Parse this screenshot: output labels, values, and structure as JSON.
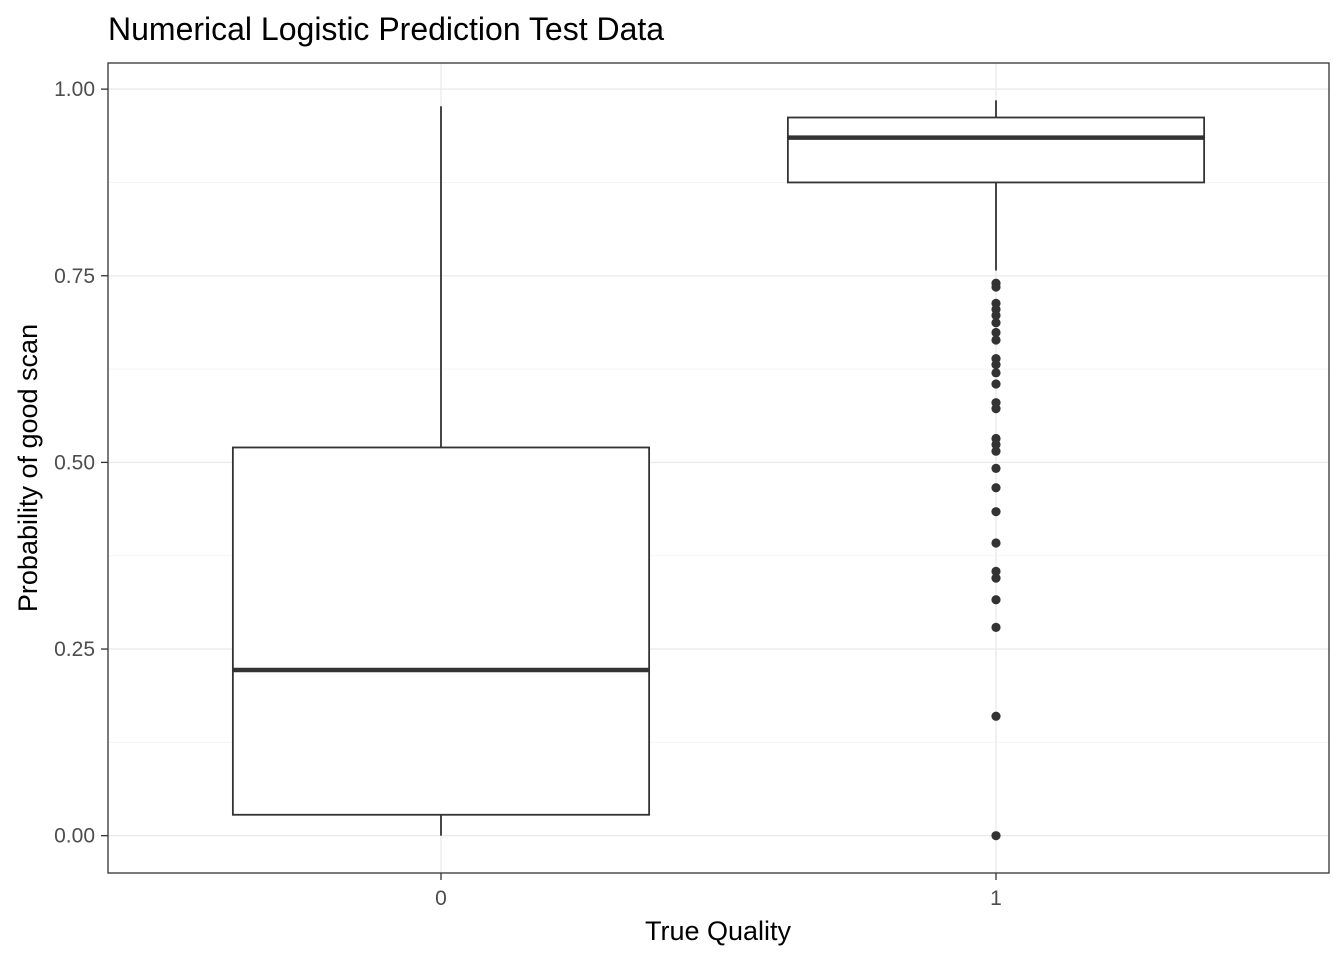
{
  "chart_data": {
    "type": "boxplot",
    "title": "Numerical Logistic Prediction Test Data",
    "xlabel": "True Quality",
    "ylabel": "Probability of good scan",
    "categories": [
      "0",
      "1"
    ],
    "ylim": [
      -0.05,
      1.035
    ],
    "y_ticks": [
      0.0,
      0.25,
      0.5,
      0.75,
      1.0
    ],
    "y_tick_labels": [
      "0.00",
      "0.25",
      "0.50",
      "0.75",
      "1.00"
    ],
    "grid": true,
    "legend": "none",
    "boxes": [
      {
        "category": "0",
        "min": 0.0,
        "q1": 0.028,
        "median": 0.222,
        "q3": 0.52,
        "max": 0.977,
        "outliers": []
      },
      {
        "category": "1",
        "min": 0.757,
        "q1": 0.875,
        "median": 0.935,
        "q3": 0.962,
        "max": 0.985,
        "outliers": [
          0.74,
          0.735,
          0.713,
          0.705,
          0.697,
          0.687,
          0.674,
          0.664,
          0.639,
          0.631,
          0.62,
          0.605,
          0.58,
          0.572,
          0.532,
          0.524,
          0.515,
          0.492,
          0.466,
          0.434,
          0.392,
          0.354,
          0.345,
          0.316,
          0.279,
          0.16,
          0.0
        ]
      }
    ],
    "colors": {
      "box_stroke": "#333333",
      "median": "#333333",
      "outlier": "#333333",
      "grid_major": "#ebebeb",
      "grid_minor": "#f5f5f5",
      "panel_border": "#333333"
    }
  }
}
